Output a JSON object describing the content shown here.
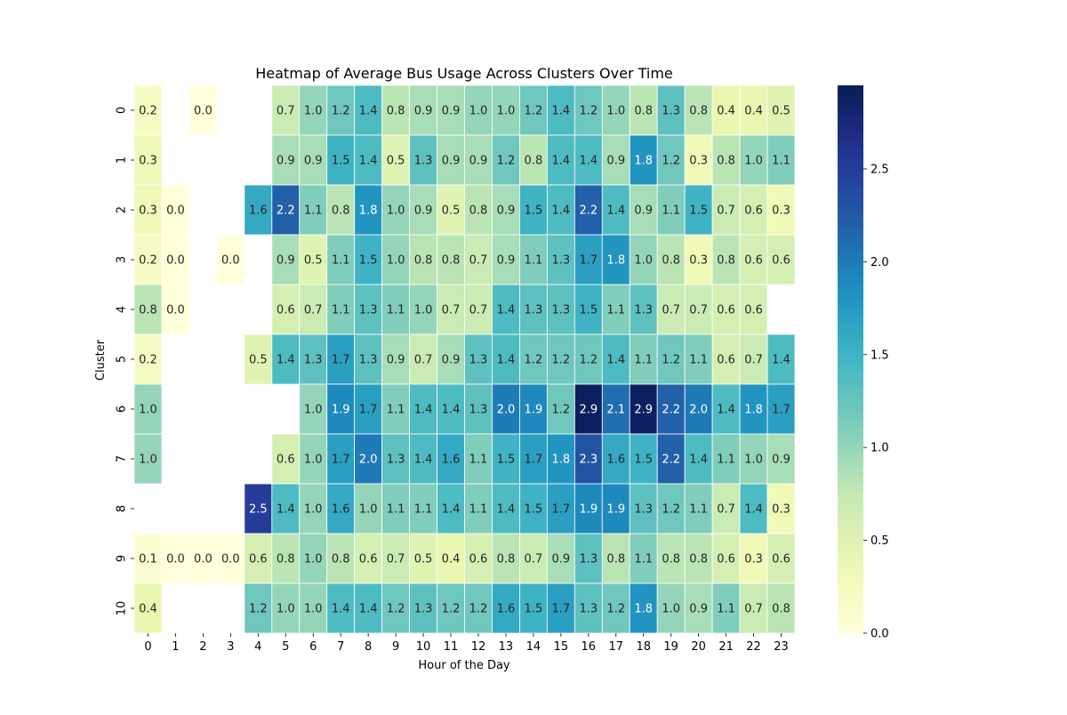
{
  "chart_data": {
    "type": "heatmap",
    "title": "Heatmap of Average Bus Usage Across Clusters Over Time",
    "xlabel": "Hour of the Day",
    "ylabel": "Cluster",
    "x_categories": [
      "0",
      "1",
      "2",
      "3",
      "4",
      "5",
      "6",
      "7",
      "8",
      "9",
      "10",
      "11",
      "12",
      "13",
      "14",
      "15",
      "16",
      "17",
      "18",
      "19",
      "20",
      "21",
      "22",
      "23"
    ],
    "y_categories": [
      "0",
      "1",
      "2",
      "3",
      "4",
      "5",
      "6",
      "7",
      "8",
      "9",
      "10"
    ],
    "values": [
      [
        0.2,
        null,
        0.0,
        null,
        null,
        0.7,
        1.0,
        1.2,
        1.4,
        0.8,
        0.9,
        0.9,
        1.0,
        1.0,
        1.2,
        1.4,
        1.2,
        1.0,
        0.8,
        1.3,
        0.8,
        0.4,
        0.4,
        0.5
      ],
      [
        0.3,
        null,
        null,
        null,
        null,
        0.9,
        0.9,
        1.5,
        1.4,
        0.5,
        1.3,
        0.9,
        0.9,
        1.2,
        0.8,
        1.4,
        1.4,
        0.9,
        1.8,
        1.2,
        0.3,
        0.8,
        1.0,
        1.1
      ],
      [
        0.3,
        0.0,
        null,
        null,
        1.6,
        2.2,
        1.1,
        0.8,
        1.8,
        1.0,
        0.9,
        0.5,
        0.8,
        0.9,
        1.5,
        1.4,
        2.2,
        1.4,
        0.9,
        1.1,
        1.5,
        0.7,
        0.6,
        0.3
      ],
      [
        0.2,
        0.0,
        null,
        0.0,
        null,
        0.9,
        0.5,
        1.1,
        1.5,
        1.0,
        0.8,
        0.8,
        0.7,
        0.9,
        1.1,
        1.3,
        1.7,
        1.8,
        1.0,
        0.8,
        0.3,
        0.8,
        0.6,
        0.6
      ],
      [
        0.8,
        0.0,
        null,
        null,
        null,
        0.6,
        0.7,
        1.1,
        1.3,
        1.1,
        1.0,
        0.7,
        0.7,
        1.4,
        1.3,
        1.3,
        1.5,
        1.1,
        1.3,
        0.7,
        0.7,
        0.6,
        0.6,
        null
      ],
      [
        0.2,
        null,
        null,
        null,
        0.5,
        1.4,
        1.3,
        1.7,
        1.3,
        0.9,
        0.7,
        0.9,
        1.3,
        1.4,
        1.2,
        1.2,
        1.2,
        1.4,
        1.1,
        1.2,
        1.1,
        0.6,
        0.7,
        1.4
      ],
      [
        1.0,
        null,
        null,
        null,
        null,
        null,
        1.0,
        1.9,
        1.7,
        1.1,
        1.4,
        1.4,
        1.3,
        2.0,
        1.9,
        1.2,
        2.9,
        2.1,
        2.9,
        2.2,
        2.0,
        1.4,
        1.8,
        1.7
      ],
      [
        1.0,
        null,
        null,
        null,
        null,
        0.6,
        1.0,
        1.7,
        2.0,
        1.3,
        1.4,
        1.6,
        1.1,
        1.5,
        1.7,
        1.8,
        2.3,
        1.6,
        1.5,
        2.2,
        1.4,
        1.1,
        1.0,
        0.9
      ],
      [
        null,
        null,
        null,
        null,
        2.5,
        1.4,
        1.0,
        1.6,
        1.0,
        1.1,
        1.1,
        1.4,
        1.1,
        1.4,
        1.5,
        1.7,
        1.9,
        1.9,
        1.3,
        1.2,
        1.1,
        0.7,
        1.4,
        0.3
      ],
      [
        0.1,
        0.0,
        0.0,
        0.0,
        0.6,
        0.8,
        1.0,
        0.8,
        0.6,
        0.7,
        0.5,
        0.4,
        0.6,
        0.8,
        0.7,
        0.9,
        1.3,
        0.8,
        1.1,
        0.8,
        0.8,
        0.6,
        0.3,
        0.6
      ],
      [
        0.4,
        null,
        null,
        null,
        1.2,
        1.0,
        1.0,
        1.4,
        1.4,
        1.2,
        1.3,
        1.2,
        1.2,
        1.6,
        1.5,
        1.7,
        1.3,
        1.2,
        1.8,
        1.0,
        0.9,
        1.1,
        0.7,
        0.8
      ]
    ],
    "colormap": "YlGnBu",
    "vmin": 0.0,
    "vmax": 2.95,
    "colorbar_ticks": [
      "0.0",
      "0.5",
      "1.0",
      "1.5",
      "2.0",
      "2.5"
    ],
    "colorbar_tick_values": [
      0.0,
      0.5,
      1.0,
      1.5,
      2.0,
      2.5
    ],
    "annotate": true,
    "value_format": "0.0"
  }
}
